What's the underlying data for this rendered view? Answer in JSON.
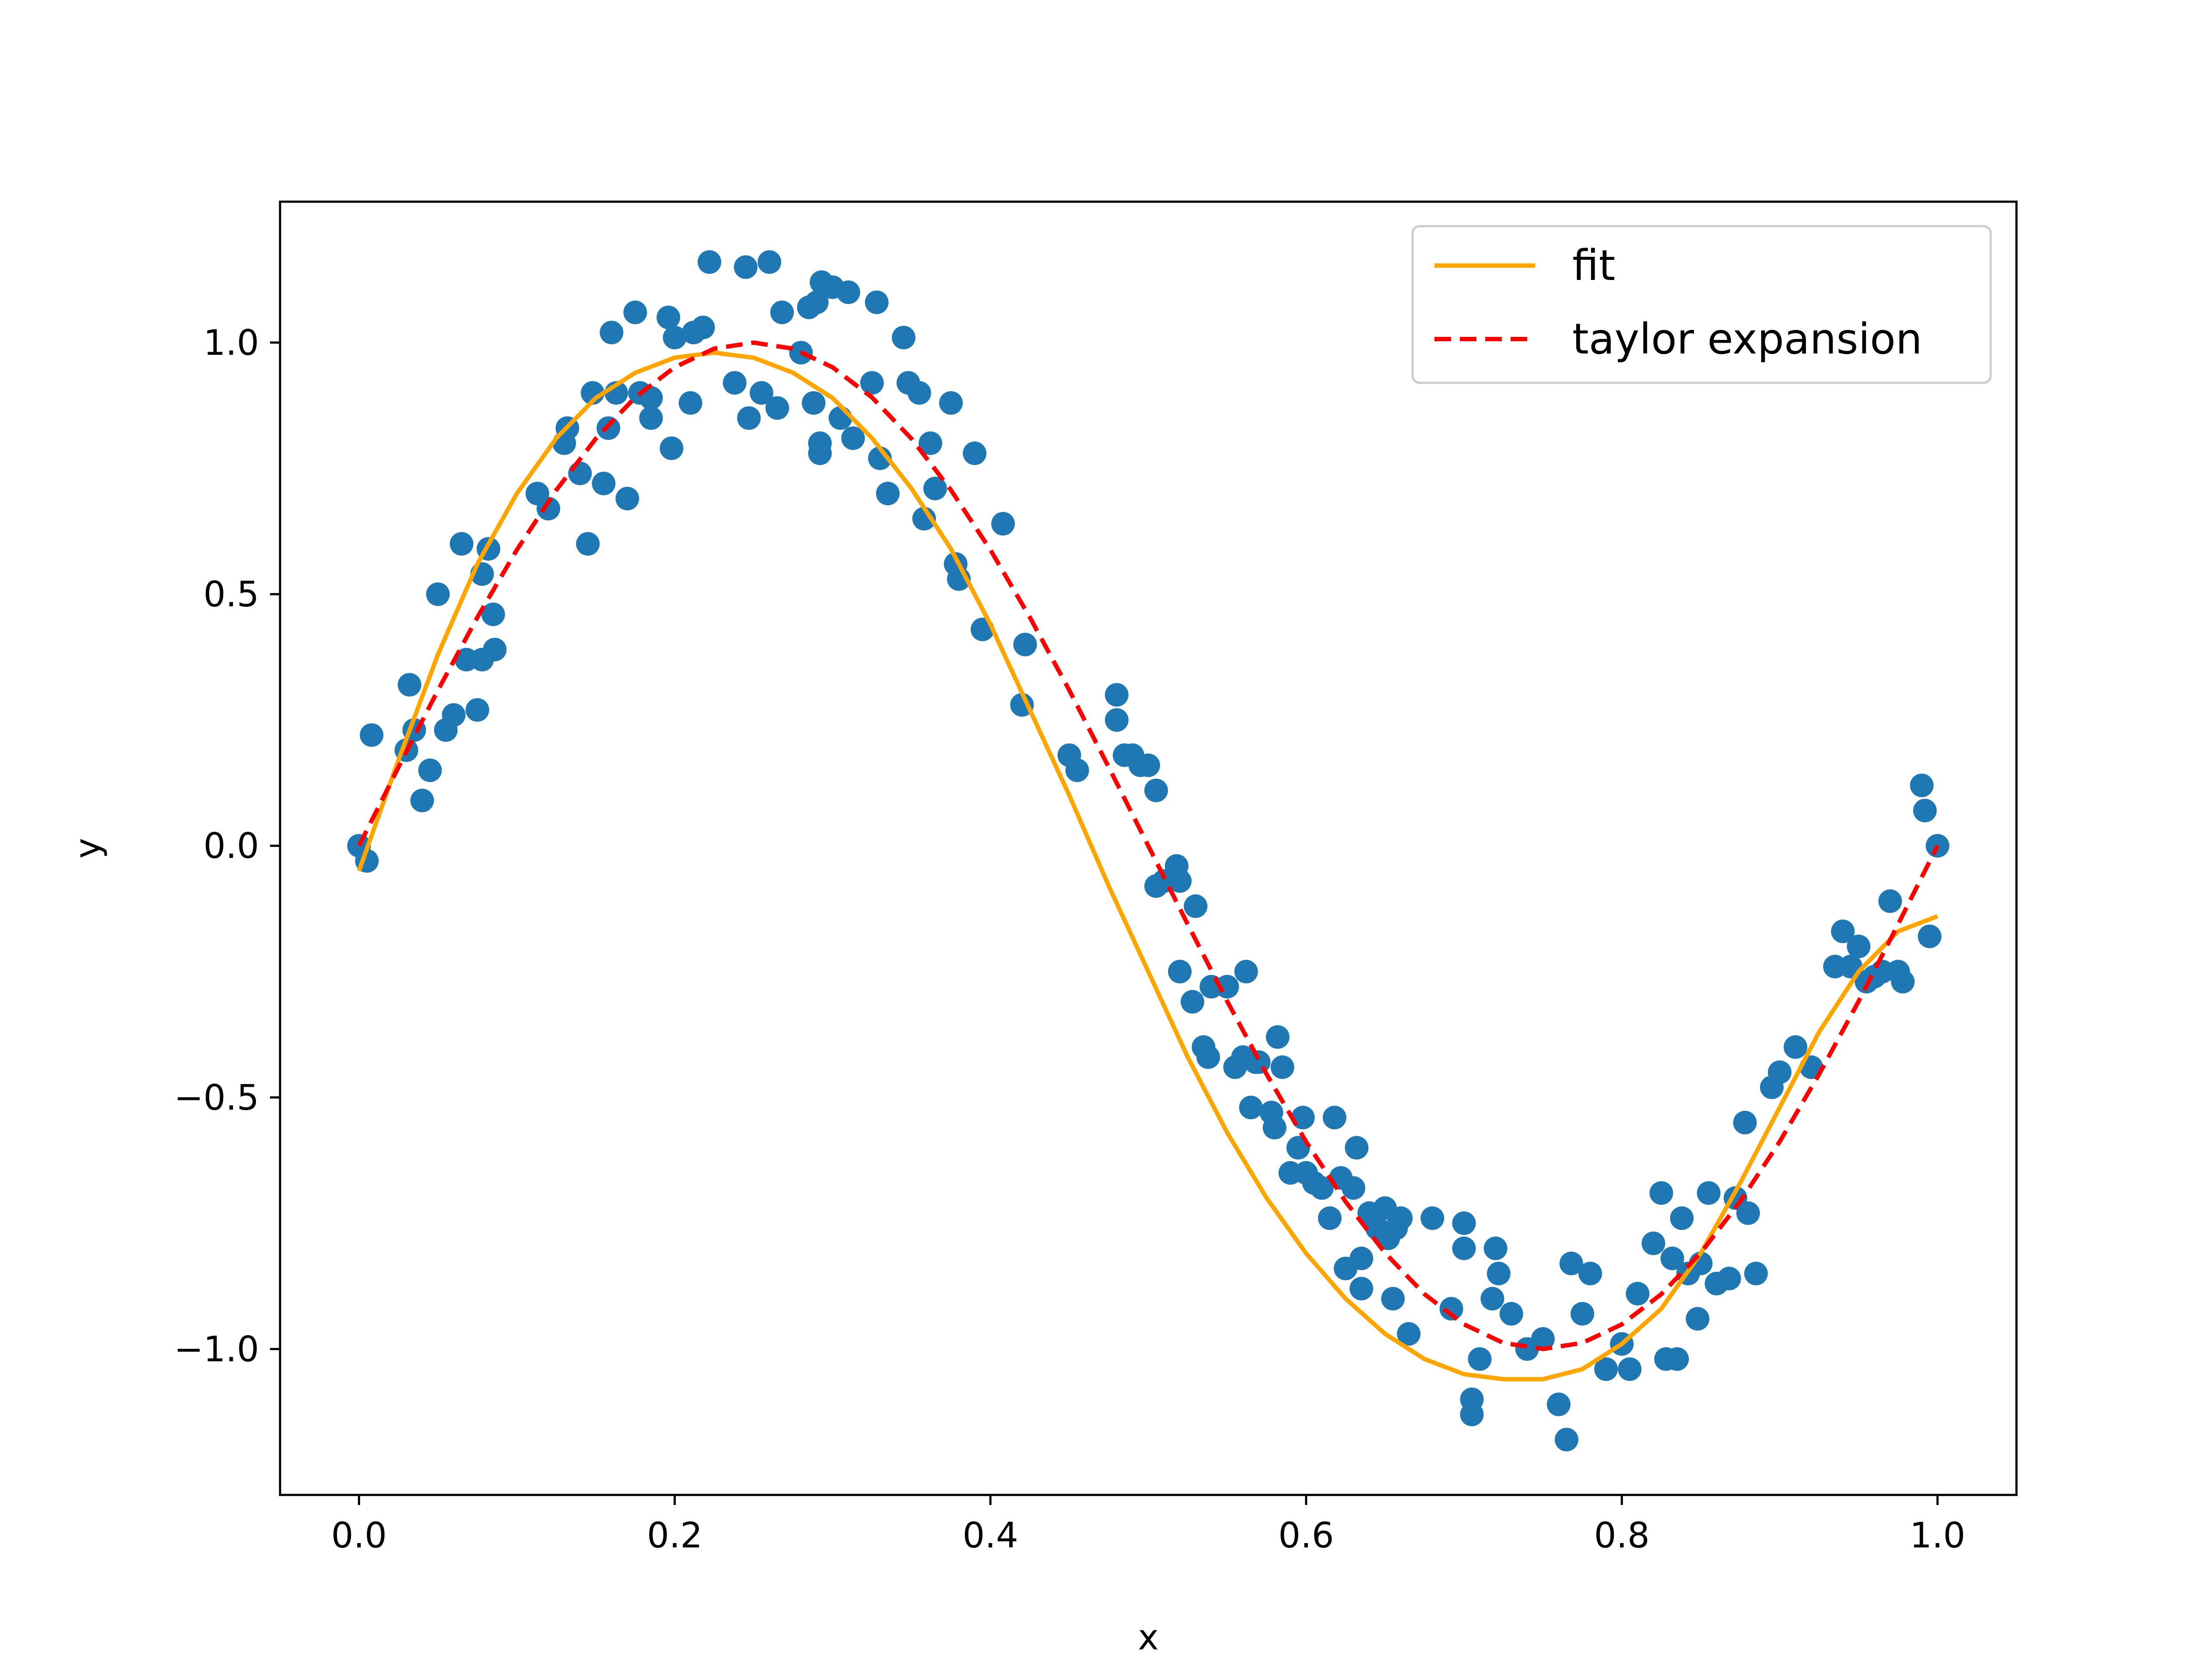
{
  "chart_data": {
    "type": "scatter",
    "title": "",
    "xlabel": "x",
    "ylabel": "y",
    "xlim": [
      -0.05,
      1.05
    ],
    "ylim": [
      -1.29,
      1.28
    ],
    "xticks": [
      0.0,
      0.2,
      0.4,
      0.6,
      0.8,
      1.0
    ],
    "xtick_labels": [
      "0.0",
      "0.2",
      "0.4",
      "0.6",
      "0.8",
      "1.0"
    ],
    "yticks": [
      -1.0,
      -0.5,
      0.0,
      0.5,
      1.0
    ],
    "ytick_labels": [
      "−1.0",
      "−0.5",
      "0.0",
      "0.5",
      "1.0"
    ],
    "grid": false,
    "legend_position": "top-right",
    "colors": {
      "points": "#1f77b4",
      "fit": "#ffa500",
      "taylor": "#ff0000"
    },
    "series": [
      {
        "name": "fit",
        "kind": "line",
        "style": "solid",
        "x": [
          0.0,
          0.025,
          0.05,
          0.075,
          0.1,
          0.125,
          0.15,
          0.175,
          0.2,
          0.225,
          0.25,
          0.275,
          0.3,
          0.325,
          0.35,
          0.375,
          0.4,
          0.425,
          0.45,
          0.475,
          0.5,
          0.525,
          0.55,
          0.575,
          0.6,
          0.625,
          0.65,
          0.675,
          0.7,
          0.725,
          0.75,
          0.775,
          0.8,
          0.825,
          0.85,
          0.875,
          0.9,
          0.925,
          0.95,
          0.975,
          1.0
        ],
        "y": [
          -0.05,
          0.17,
          0.38,
          0.56,
          0.7,
          0.81,
          0.89,
          0.94,
          0.97,
          0.98,
          0.97,
          0.94,
          0.89,
          0.81,
          0.71,
          0.59,
          0.44,
          0.27,
          0.1,
          -0.08,
          -0.25,
          -0.42,
          -0.57,
          -0.7,
          -0.81,
          -0.9,
          -0.97,
          -1.02,
          -1.05,
          -1.06,
          -1.06,
          -1.04,
          -0.99,
          -0.92,
          -0.81,
          -0.67,
          -0.52,
          -0.37,
          -0.25,
          -0.17,
          -0.14
        ]
      },
      {
        "name": "taylor expansion",
        "kind": "line",
        "style": "dashed",
        "x": [
          0.0,
          0.025,
          0.05,
          0.075,
          0.1,
          0.125,
          0.15,
          0.175,
          0.2,
          0.225,
          0.25,
          0.275,
          0.3,
          0.325,
          0.35,
          0.375,
          0.4,
          0.425,
          0.45,
          0.475,
          0.5,
          0.525,
          0.55,
          0.575,
          0.6,
          0.625,
          0.65,
          0.675,
          0.7,
          0.725,
          0.75,
          0.775,
          0.8,
          0.825,
          0.85,
          0.875,
          0.9,
          0.925,
          0.95,
          0.975,
          1.0
        ],
        "y": [
          0.0,
          0.156,
          0.309,
          0.454,
          0.588,
          0.707,
          0.809,
          0.891,
          0.951,
          0.988,
          1.0,
          0.988,
          0.951,
          0.891,
          0.809,
          0.707,
          0.588,
          0.454,
          0.309,
          0.156,
          0.0,
          -0.156,
          -0.309,
          -0.454,
          -0.588,
          -0.707,
          -0.809,
          -0.891,
          -0.951,
          -0.988,
          -1.0,
          -0.988,
          -0.951,
          -0.891,
          -0.809,
          -0.707,
          -0.588,
          -0.454,
          -0.309,
          -0.156,
          0.0
        ]
      },
      {
        "name": "",
        "kind": "scatter",
        "points": [
          [
            0.0,
            0.0
          ],
          [
            0.005,
            -0.03
          ],
          [
            0.008,
            0.22
          ],
          [
            0.03,
            0.19
          ],
          [
            0.032,
            0.32
          ],
          [
            0.035,
            0.23
          ],
          [
            0.04,
            0.09
          ],
          [
            0.045,
            0.15
          ],
          [
            0.05,
            0.5
          ],
          [
            0.055,
            0.23
          ],
          [
            0.06,
            0.26
          ],
          [
            0.065,
            0.6
          ],
          [
            0.068,
            0.37
          ],
          [
            0.075,
            0.27
          ],
          [
            0.078,
            0.37
          ],
          [
            0.078,
            0.54
          ],
          [
            0.082,
            0.59
          ],
          [
            0.085,
            0.46
          ],
          [
            0.086,
            0.39
          ],
          [
            0.113,
            0.7
          ],
          [
            0.12,
            0.67
          ],
          [
            0.13,
            0.8
          ],
          [
            0.132,
            0.83
          ],
          [
            0.14,
            0.74
          ],
          [
            0.145,
            0.6
          ],
          [
            0.148,
            0.9
          ],
          [
            0.155,
            0.72
          ],
          [
            0.158,
            0.83
          ],
          [
            0.16,
            1.02
          ],
          [
            0.163,
            0.9
          ],
          [
            0.17,
            0.69
          ],
          [
            0.175,
            1.06
          ],
          [
            0.178,
            0.9
          ],
          [
            0.185,
            0.85
          ],
          [
            0.185,
            0.89
          ],
          [
            0.198,
            0.79
          ],
          [
            0.196,
            1.05
          ],
          [
            0.2,
            1.01
          ],
          [
            0.21,
            0.88
          ],
          [
            0.212,
            1.02
          ],
          [
            0.218,
            1.03
          ],
          [
            0.222,
            1.16
          ],
          [
            0.238,
            0.92
          ],
          [
            0.245,
            1.15
          ],
          [
            0.247,
            0.85
          ],
          [
            0.255,
            0.9
          ],
          [
            0.26,
            1.16
          ],
          [
            0.265,
            0.87
          ],
          [
            0.268,
            1.06
          ],
          [
            0.28,
            0.98
          ],
          [
            0.285,
            1.07
          ],
          [
            0.288,
            0.88
          ],
          [
            0.29,
            1.08
          ],
          [
            0.292,
            0.78
          ],
          [
            0.292,
            0.8
          ],
          [
            0.293,
            1.12
          ],
          [
            0.3,
            1.11
          ],
          [
            0.305,
            0.85
          ],
          [
            0.31,
            1.1
          ],
          [
            0.313,
            0.81
          ],
          [
            0.325,
            0.92
          ],
          [
            0.328,
            1.08
          ],
          [
            0.33,
            0.77
          ],
          [
            0.335,
            0.7
          ],
          [
            0.345,
            1.01
          ],
          [
            0.348,
            0.92
          ],
          [
            0.355,
            0.9
          ],
          [
            0.358,
            0.65
          ],
          [
            0.362,
            0.8
          ],
          [
            0.365,
            0.71
          ],
          [
            0.375,
            0.88
          ],
          [
            0.378,
            0.56
          ],
          [
            0.38,
            0.53
          ],
          [
            0.39,
            0.78
          ],
          [
            0.395,
            0.43
          ],
          [
            0.408,
            0.64
          ],
          [
            0.42,
            0.28
          ],
          [
            0.422,
            0.4
          ],
          [
            0.45,
            0.18
          ],
          [
            0.455,
            0.15
          ],
          [
            0.48,
            0.3
          ],
          [
            0.48,
            0.25
          ],
          [
            0.485,
            0.18
          ],
          [
            0.49,
            0.18
          ],
          [
            0.495,
            0.16
          ],
          [
            0.5,
            0.16
          ],
          [
            0.505,
            0.11
          ],
          [
            0.505,
            -0.08
          ],
          [
            0.51,
            -0.07
          ],
          [
            0.518,
            -0.04
          ],
          [
            0.52,
            -0.07
          ],
          [
            0.52,
            -0.25
          ],
          [
            0.528,
            -0.31
          ],
          [
            0.53,
            -0.12
          ],
          [
            0.535,
            -0.4
          ],
          [
            0.538,
            -0.42
          ],
          [
            0.54,
            -0.28
          ],
          [
            0.55,
            -0.28
          ],
          [
            0.555,
            -0.44
          ],
          [
            0.56,
            -0.42
          ],
          [
            0.562,
            -0.25
          ],
          [
            0.565,
            -0.52
          ],
          [
            0.568,
            -0.43
          ],
          [
            0.57,
            -0.43
          ],
          [
            0.578,
            -0.53
          ],
          [
            0.58,
            -0.56
          ],
          [
            0.582,
            -0.38
          ],
          [
            0.585,
            -0.44
          ],
          [
            0.59,
            -0.65
          ],
          [
            0.595,
            -0.6
          ],
          [
            0.598,
            -0.54
          ],
          [
            0.6,
            -0.65
          ],
          [
            0.605,
            -0.67
          ],
          [
            0.61,
            -0.68
          ],
          [
            0.615,
            -0.74
          ],
          [
            0.618,
            -0.54
          ],
          [
            0.622,
            -0.66
          ],
          [
            0.625,
            -0.84
          ],
          [
            0.63,
            -0.68
          ],
          [
            0.632,
            -0.6
          ],
          [
            0.635,
            -0.82
          ],
          [
            0.635,
            -0.88
          ],
          [
            0.64,
            -0.73
          ],
          [
            0.645,
            -0.76
          ],
          [
            0.65,
            -0.72
          ],
          [
            0.652,
            -0.78
          ],
          [
            0.655,
            -0.9
          ],
          [
            0.657,
            -0.76
          ],
          [
            0.66,
            -0.74
          ],
          [
            0.665,
            -0.97
          ],
          [
            0.68,
            -0.74
          ],
          [
            0.692,
            -0.92
          ],
          [
            0.7,
            -0.75
          ],
          [
            0.7,
            -0.8
          ],
          [
            0.705,
            -1.1
          ],
          [
            0.705,
            -1.13
          ],
          [
            0.71,
            -1.02
          ],
          [
            0.718,
            -0.9
          ],
          [
            0.72,
            -0.8
          ],
          [
            0.722,
            -0.85
          ],
          [
            0.73,
            -0.93
          ],
          [
            0.74,
            -1.0
          ],
          [
            0.75,
            -0.98
          ],
          [
            0.76,
            -1.11
          ],
          [
            0.765,
            -1.18
          ],
          [
            0.768,
            -0.83
          ],
          [
            0.775,
            -0.93
          ],
          [
            0.78,
            -0.85
          ],
          [
            0.79,
            -1.04
          ],
          [
            0.8,
            -0.99
          ],
          [
            0.805,
            -1.04
          ],
          [
            0.81,
            -0.89
          ],
          [
            0.82,
            -0.79
          ],
          [
            0.825,
            -0.69
          ],
          [
            0.828,
            -1.02
          ],
          [
            0.832,
            -0.82
          ],
          [
            0.835,
            -1.02
          ],
          [
            0.838,
            -0.74
          ],
          [
            0.842,
            -0.85
          ],
          [
            0.848,
            -0.94
          ],
          [
            0.85,
            -0.83
          ],
          [
            0.855,
            -0.69
          ],
          [
            0.86,
            -0.87
          ],
          [
            0.868,
            -0.86
          ],
          [
            0.872,
            -0.7
          ],
          [
            0.878,
            -0.55
          ],
          [
            0.88,
            -0.73
          ],
          [
            0.885,
            -0.85
          ],
          [
            0.895,
            -0.48
          ],
          [
            0.9,
            -0.45
          ],
          [
            0.91,
            -0.4
          ],
          [
            0.92,
            -0.44
          ],
          [
            0.935,
            -0.24
          ],
          [
            0.94,
            -0.17
          ],
          [
            0.945,
            -0.24
          ],
          [
            0.95,
            -0.2
          ],
          [
            0.955,
            -0.27
          ],
          [
            0.96,
            -0.26
          ],
          [
            0.965,
            -0.25
          ],
          [
            0.97,
            -0.11
          ],
          [
            0.975,
            -0.25
          ],
          [
            0.978,
            -0.27
          ],
          [
            0.99,
            0.12
          ],
          [
            0.992,
            0.07
          ],
          [
            0.995,
            -0.18
          ],
          [
            1.0,
            0.0
          ]
        ]
      }
    ]
  }
}
